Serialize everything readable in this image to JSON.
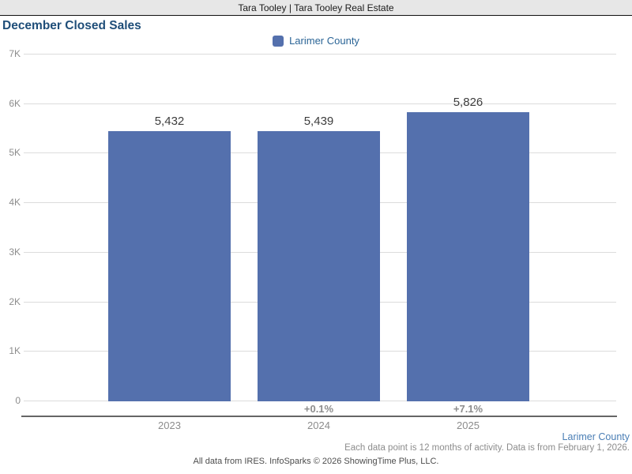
{
  "banner": {
    "text": "Tara Tooley | Tara Tooley Real Estate"
  },
  "title": "December Closed Sales",
  "legend": {
    "label": "Larimer County",
    "swatch_color": "#5470ad"
  },
  "chart_data": {
    "type": "bar",
    "title": "December Closed Sales",
    "categories": [
      "2023",
      "2024",
      "2025"
    ],
    "series": [
      {
        "name": "Larimer County",
        "values": [
          5432,
          5439,
          5826
        ]
      }
    ],
    "value_labels": [
      "5,432",
      "5,439",
      "5,826"
    ],
    "pct_change_labels": [
      "",
      "+0.1%",
      "+7.1%"
    ],
    "ylim": [
      0,
      7000
    ],
    "yticks": [
      {
        "value": 0,
        "label": "0"
      },
      {
        "value": 1000,
        "label": "1K"
      },
      {
        "value": 2000,
        "label": "2K"
      },
      {
        "value": 3000,
        "label": "3K"
      },
      {
        "value": 4000,
        "label": "4K"
      },
      {
        "value": 5000,
        "label": "5K"
      },
      {
        "value": 6000,
        "label": "6K"
      },
      {
        "value": 7000,
        "label": "7K"
      }
    ],
    "grid": true,
    "legend_position": "top-center",
    "bar_color": "#5470ad"
  },
  "footnotes": {
    "series_note": "Larimer County",
    "data_note": "Each data point is 12 months of activity. Data is from February 1, 2026.",
    "footer": "All data from IRES. InfoSparks © 2026 ShowingTime Plus, LLC."
  }
}
